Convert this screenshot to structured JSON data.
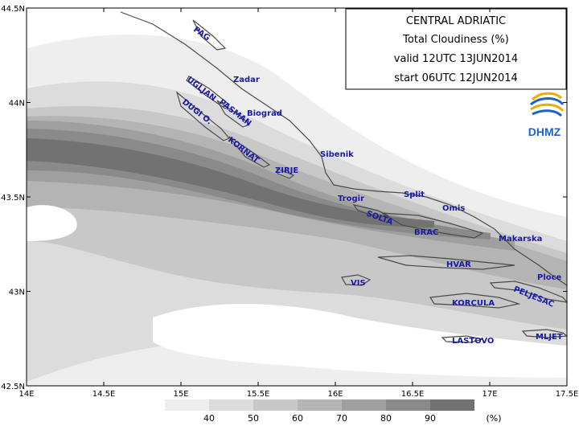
{
  "title": {
    "line1": "CENTRAL ADRIATIC",
    "line2": "Total Cloudiness (%)",
    "line3": "valid 12UTC 13JUN2014",
    "line4": "start 06UTC 12JUN2014"
  },
  "logo": {
    "text": "DHMZ"
  },
  "axes": {
    "lon": [
      "14E",
      "14.5E",
      "15E",
      "15.5E",
      "16E",
      "16.5E",
      "17E",
      "17.5E"
    ],
    "lat": [
      "44.5N",
      "44N",
      "43.5N",
      "43N",
      "42.5N"
    ]
  },
  "places": {
    "pag": "PAG",
    "zadar": "Zadar",
    "ugljan": "UGLJAN",
    "pasman": "PASMAN",
    "biograd": "Biograd",
    "dugi": "DUGI O.",
    "kornat": "KORNAT",
    "sibenik": "Sibenik",
    "zirje": "ZIRJE",
    "trogir": "Trogir",
    "split": "Split",
    "omis": "Omis",
    "solta": "SOLTA",
    "brac": "BRAC",
    "makarska": "Makarska",
    "hvar": "HVAR",
    "vis": "VIS",
    "ploce": "Ploce",
    "peljesac": "PELJESAC",
    "korcula": "KORCULA",
    "lastovo": "LASTOVO",
    "mljet": "MLJET"
  },
  "legend": {
    "labels": [
      "40",
      "50",
      "60",
      "70",
      "80",
      "90"
    ],
    "unit": "(%)",
    "colors": [
      "#eeeeee",
      "#dcdcdc",
      "#c8c8c8",
      "#b4b4b4",
      "#9f9f9f",
      "#8a8a8a",
      "#727272"
    ]
  }
}
